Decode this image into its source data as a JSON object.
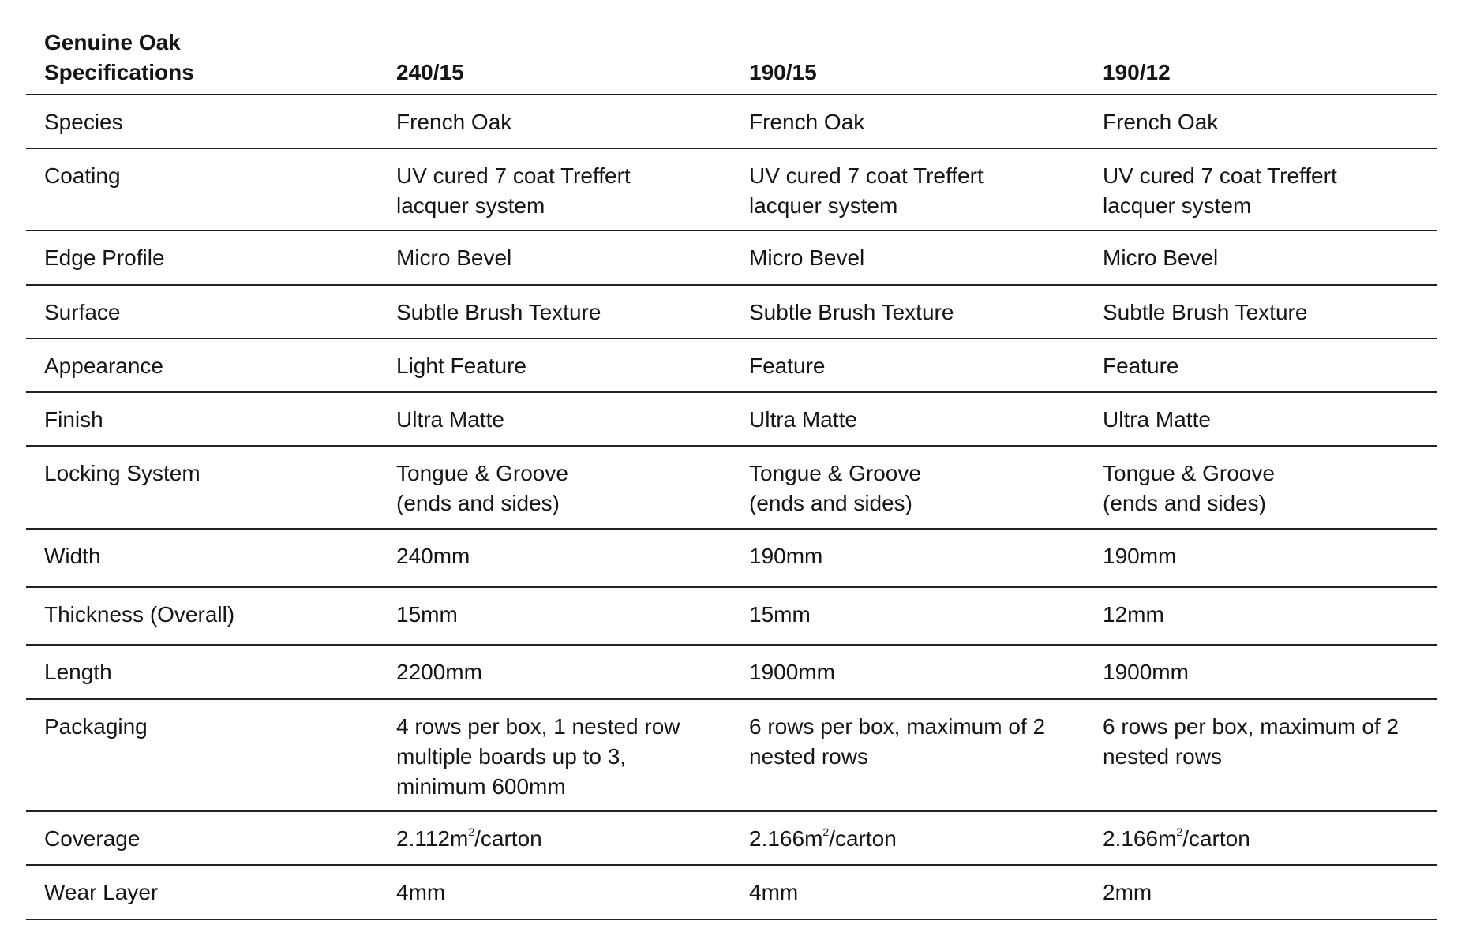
{
  "table": {
    "title": "Genuine Oak Specifications",
    "title_line1": "Genuine Oak",
    "title_line2": "Specifications",
    "columns": [
      "240/15",
      "190/15",
      "190/12"
    ],
    "rows": [
      {
        "label": "Species",
        "values": [
          "French Oak",
          "French Oak",
          "French Oak"
        ]
      },
      {
        "label": "Coating",
        "values": [
          "UV cured 7 coat Treffert lacquer system",
          "UV cured 7 coat Treffert lacquer system",
          "UV cured 7 coat Treffert lacquer system"
        ]
      },
      {
        "label": "Edge Profile",
        "values": [
          "Micro Bevel",
          "Micro Bevel",
          "Micro Bevel"
        ]
      },
      {
        "label": "Surface",
        "values": [
          "Subtle Brush Texture",
          "Subtle Brush Texture",
          "Subtle Brush Texture"
        ]
      },
      {
        "label": "Appearance",
        "values": [
          "Light Feature",
          "Feature",
          "Feature"
        ]
      },
      {
        "label": "Finish",
        "values": [
          "Ultra Matte",
          "Ultra Matte",
          "Ultra Matte"
        ]
      },
      {
        "label": "Locking System",
        "values": [
          "Tongue & Groove (ends and sides)",
          "Tongue & Groove (ends and sides)",
          "Tongue & Groove (ends and sides)"
        ]
      },
      {
        "label": "Width",
        "values": [
          "240mm",
          "190mm",
          "190mm"
        ]
      },
      {
        "label": "Thickness (Overall)",
        "values": [
          "15mm",
          "15mm",
          "12mm"
        ]
      },
      {
        "label": "Length",
        "values": [
          "2200mm",
          "1900mm",
          "1900mm"
        ]
      },
      {
        "label": "Packaging",
        "values": [
          "4 rows per box, 1 nested row multiple boards up to 3, minimum 600mm",
          "6 rows per box, maximum of 2 nested rows",
          "6 rows per box, maximum of 2 nested rows"
        ]
      },
      {
        "label": "Coverage",
        "values": [
          "2.112m²/carton",
          "2.166m²/carton",
          "2.166m²/carton"
        ]
      },
      {
        "label": "Wear Layer",
        "values": [
          "4mm",
          "4mm",
          "2mm"
        ]
      }
    ]
  }
}
